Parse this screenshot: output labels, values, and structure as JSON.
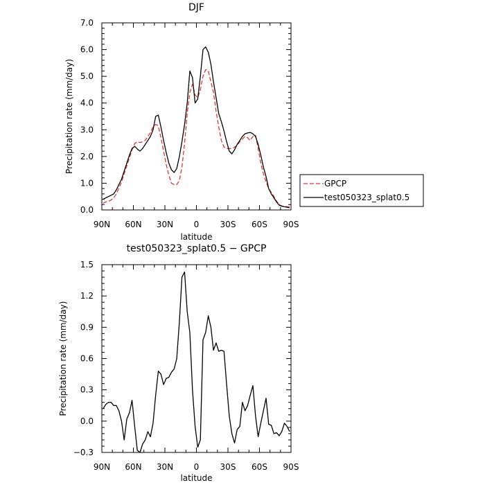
{
  "chart_data": [
    {
      "type": "line",
      "title": "DJF",
      "xlabel": "latitude",
      "ylabel": "Precipitation rate (mm/day)",
      "xlim": [
        90,
        -90
      ],
      "ylim": [
        0,
        7
      ],
      "xticks": [
        90,
        60,
        30,
        0,
        -30,
        -60,
        -90
      ],
      "xtick_labels": [
        "90N",
        "60N",
        "30N",
        "0",
        "30S",
        "60S",
        "90S"
      ],
      "yticks": [
        0,
        1,
        2,
        3,
        4,
        5,
        6,
        7
      ],
      "ytick_labels": [
        "0.0",
        "1.0",
        "2.0",
        "3.0",
        "4.0",
        "5.0",
        "6.0",
        "7.0"
      ],
      "legend_position": "right",
      "grid": false,
      "series": [
        {
          "name": "GPCP",
          "color": "#e8322d",
          "style": "dashed",
          "x": [
            88.75,
            86.25,
            83.75,
            81.25,
            78.75,
            76.25,
            73.75,
            71.25,
            68.75,
            66.25,
            63.75,
            61.25,
            58.75,
            56.25,
            53.75,
            51.25,
            48.75,
            46.25,
            43.75,
            41.25,
            38.75,
            36.25,
            33.75,
            31.25,
            28.75,
            26.25,
            23.75,
            21.25,
            18.75,
            16.25,
            13.75,
            11.25,
            8.75,
            6.25,
            3.75,
            1.25,
            -1.25,
            -3.75,
            -6.25,
            -8.75,
            -11.25,
            -13.75,
            -16.25,
            -18.75,
            -21.25,
            -23.75,
            -26.25,
            -28.75,
            -31.25,
            -33.75,
            -36.25,
            -38.75,
            -41.25,
            -43.75,
            -46.25,
            -48.75,
            -51.25,
            -53.75,
            -56.25,
            -58.75,
            -61.25,
            -63.75,
            -66.25,
            -68.75,
            -71.25,
            -73.75,
            -76.25,
            -78.75,
            -81.25,
            -83.75,
            -86.25,
            -88.75
          ],
          "y": [
            0.25,
            0.3,
            0.32,
            0.37,
            0.45,
            0.6,
            0.82,
            1.05,
            1.35,
            1.65,
            1.95,
            2.25,
            2.48,
            2.55,
            2.52,
            2.55,
            2.6,
            2.75,
            2.9,
            3.1,
            3.2,
            3.15,
            2.7,
            2.2,
            1.7,
            1.3,
            1.0,
            0.95,
            0.95,
            1.1,
            1.6,
            2.5,
            3.6,
            4.4,
            4.7,
            4.3,
            4.2,
            4.5,
            5.0,
            5.25,
            5.2,
            4.8,
            4.4,
            3.7,
            3.1,
            2.6,
            2.35,
            2.3,
            2.3,
            2.3,
            2.35,
            2.42,
            2.55,
            2.65,
            2.75,
            2.7,
            2.6,
            2.75,
            2.8,
            2.3,
            1.75,
            1.35,
            1.05,
            0.8,
            0.65,
            0.5,
            0.33,
            0.2,
            0.15,
            0.13,
            0.12,
            0.12
          ]
        },
        {
          "name": "test050323_splat0.5",
          "color": "#000000",
          "style": "solid",
          "x": [
            88.75,
            86.25,
            83.75,
            81.25,
            78.75,
            76.25,
            73.75,
            71.25,
            68.75,
            66.25,
            63.75,
            61.25,
            58.75,
            56.25,
            53.75,
            51.25,
            48.75,
            46.25,
            43.75,
            41.25,
            38.75,
            36.25,
            33.75,
            31.25,
            28.75,
            26.25,
            23.75,
            21.25,
            18.75,
            16.25,
            13.75,
            11.25,
            8.75,
            6.25,
            3.75,
            1.25,
            -1.25,
            -3.75,
            -6.25,
            -8.75,
            -11.25,
            -13.75,
            -16.25,
            -18.75,
            -21.25,
            -23.75,
            -26.25,
            -28.75,
            -31.25,
            -33.75,
            -36.25,
            -38.75,
            -41.25,
            -43.75,
            -46.25,
            -48.75,
            -51.25,
            -53.75,
            -56.25,
            -58.75,
            -61.25,
            -63.75,
            -66.25,
            -68.75,
            -71.25,
            -73.75,
            -76.25,
            -78.75,
            -81.25,
            -83.75,
            -86.25,
            -88.75
          ],
          "y": [
            0.4,
            0.45,
            0.5,
            0.55,
            0.6,
            0.75,
            0.95,
            1.15,
            1.45,
            1.75,
            2.05,
            2.3,
            2.38,
            2.28,
            2.2,
            2.3,
            2.45,
            2.6,
            2.75,
            3.0,
            3.5,
            3.55,
            3.1,
            2.6,
            2.15,
            1.75,
            1.5,
            1.4,
            1.55,
            2.0,
            2.55,
            3.2,
            4.0,
            5.2,
            4.95,
            4.0,
            4.15,
            5.0,
            6.0,
            6.1,
            5.9,
            5.45,
            4.8,
            4.2,
            3.6,
            3.3,
            2.95,
            2.55,
            2.2,
            2.1,
            2.25,
            2.45,
            2.6,
            2.75,
            2.85,
            2.88,
            2.9,
            2.85,
            2.75,
            2.45,
            2.05,
            1.6,
            1.25,
            0.8,
            0.6,
            0.45,
            0.3,
            0.18,
            0.14,
            0.12,
            0.1,
            0.08
          ]
        }
      ]
    },
    {
      "type": "line",
      "title": "test050323_splat0.5 − GPCP",
      "xlabel": "latitude",
      "ylabel": "Precipitation rate (mm/day)",
      "xlim": [
        90,
        -90
      ],
      "ylim": [
        -0.3,
        1.5
      ],
      "xticks": [
        90,
        60,
        30,
        0,
        -30,
        -60,
        -90
      ],
      "xtick_labels": [
        "90N",
        "60N",
        "30N",
        "0",
        "30S",
        "60S",
        "90S"
      ],
      "yticks": [
        -0.3,
        0,
        0.3,
        0.6,
        0.9,
        1.2,
        1.5
      ],
      "ytick_labels": [
        "−0.3",
        "0.0",
        "0.3",
        "0.6",
        "0.9",
        "1.2",
        "1.5"
      ],
      "grid": false,
      "series": [
        {
          "color": "#000000",
          "style": "solid",
          "x": [
            88.75,
            86.25,
            83.75,
            81.25,
            78.75,
            76.25,
            73.75,
            71.25,
            68.75,
            66.25,
            63.75,
            61.25,
            58.75,
            56.25,
            53.75,
            51.25,
            48.75,
            46.25,
            43.75,
            41.25,
            38.75,
            36.25,
            33.75,
            31.25,
            28.75,
            26.25,
            23.75,
            21.25,
            18.75,
            16.25,
            13.75,
            11.25,
            8.75,
            6.25,
            3.75,
            1.25,
            -1.25,
            -3.75,
            -6.25,
            -8.75,
            -11.25,
            -13.75,
            -16.25,
            -18.75,
            -21.25,
            -23.75,
            -26.25,
            -28.75,
            -31.25,
            -33.75,
            -36.25,
            -38.75,
            -41.25,
            -43.75,
            -46.25,
            -48.75,
            -51.25,
            -53.75,
            -56.25,
            -58.75,
            -61.25,
            -63.75,
            -66.25,
            -68.75,
            -71.25,
            -73.75,
            -76.25,
            -78.75,
            -81.25,
            -83.75,
            -86.25,
            -88.75
          ],
          "y": [
            0.12,
            0.16,
            0.18,
            0.18,
            0.15,
            0.15,
            0.1,
            0.0,
            -0.18,
            0.02,
            0.08,
            0.2,
            -0.05,
            -0.28,
            -0.3,
            -0.22,
            -0.18,
            -0.1,
            -0.15,
            -0.02,
            0.25,
            0.48,
            0.45,
            0.35,
            0.41,
            0.42,
            0.47,
            0.5,
            0.6,
            0.95,
            1.38,
            1.43,
            1.05,
            0.85,
            0.3,
            -0.05,
            -0.25,
            -0.18,
            0.78,
            0.85,
            1.01,
            0.9,
            0.68,
            0.75,
            0.67,
            0.68,
            0.67,
            0.35,
            0.05,
            -0.12,
            -0.21,
            -0.08,
            -0.05,
            0.18,
            0.1,
            0.15,
            0.25,
            0.34,
            0.05,
            -0.15,
            -0.02,
            0.1,
            0.22,
            -0.03,
            -0.04,
            -0.12,
            -0.11,
            -0.14,
            -0.1,
            -0.02,
            -0.05,
            -0.1
          ]
        }
      ]
    }
  ]
}
